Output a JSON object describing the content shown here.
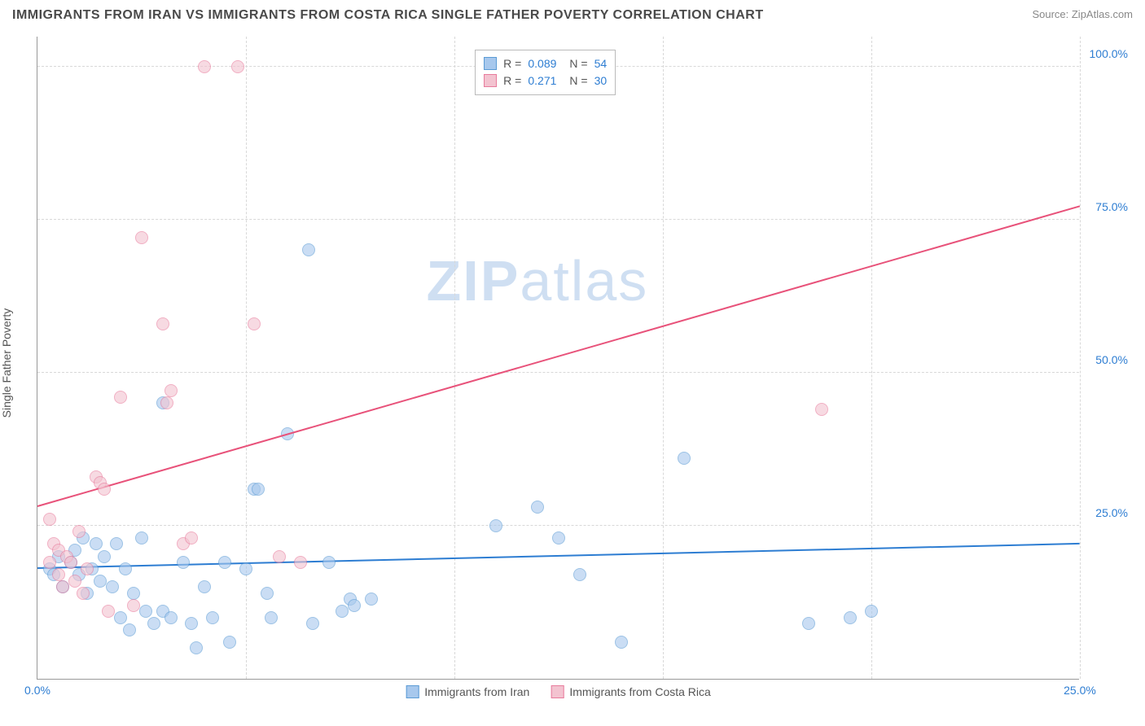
{
  "header": {
    "title": "IMMIGRANTS FROM IRAN VS IMMIGRANTS FROM COSTA RICA SINGLE FATHER POVERTY CORRELATION CHART",
    "source": "Source: ZipAtlas.com"
  },
  "yaxis": {
    "label": "Single Father Poverty"
  },
  "watermark": {
    "zip": "ZIP",
    "atlas": "atlas"
  },
  "chart": {
    "type": "scatter",
    "xlim": [
      0,
      25
    ],
    "ylim": [
      0,
      105
    ],
    "background_color": "#ffffff",
    "grid_color": "#d8d8d8",
    "axis_color": "#999999",
    "tick_color": "#2d7dd2",
    "marker_radius": 8,
    "marker_opacity": 0.35,
    "yticks": [
      {
        "v": 25,
        "label": "25.0%"
      },
      {
        "v": 50,
        "label": "50.0%"
      },
      {
        "v": 75,
        "label": "75.0%"
      },
      {
        "v": 100,
        "label": "100.0%"
      }
    ],
    "xticks": [
      {
        "v": 0,
        "label": "0.0%"
      },
      {
        "v": 5,
        "label": ""
      },
      {
        "v": 10,
        "label": ""
      },
      {
        "v": 15,
        "label": ""
      },
      {
        "v": 20,
        "label": ""
      },
      {
        "v": 25,
        "label": "25.0%"
      }
    ],
    "series": [
      {
        "name": "Immigrants from Iran",
        "fill": "#a7c8ed",
        "stroke": "#5b9bd5",
        "R": "0.089",
        "N": "54",
        "trend": {
          "x1": 0,
          "y1": 18,
          "x2": 25,
          "y2": 22,
          "color": "#2d7dd2",
          "width": 2
        },
        "points": [
          [
            0.3,
            18
          ],
          [
            0.4,
            17
          ],
          [
            0.5,
            20
          ],
          [
            0.6,
            15
          ],
          [
            0.8,
            19
          ],
          [
            0.9,
            21
          ],
          [
            1.0,
            17
          ],
          [
            1.1,
            23
          ],
          [
            1.2,
            14
          ],
          [
            1.3,
            18
          ],
          [
            1.4,
            22
          ],
          [
            1.5,
            16
          ],
          [
            1.6,
            20
          ],
          [
            1.8,
            15
          ],
          [
            1.9,
            22
          ],
          [
            2.0,
            10
          ],
          [
            2.1,
            18
          ],
          [
            2.2,
            8
          ],
          [
            2.3,
            14
          ],
          [
            2.5,
            23
          ],
          [
            2.6,
            11
          ],
          [
            2.8,
            9
          ],
          [
            3.0,
            11
          ],
          [
            3.0,
            45
          ],
          [
            3.2,
            10
          ],
          [
            3.5,
            19
          ],
          [
            3.7,
            9
          ],
          [
            3.8,
            5
          ],
          [
            4.0,
            15
          ],
          [
            4.2,
            10
          ],
          [
            4.5,
            19
          ],
          [
            4.6,
            6
          ],
          [
            5.0,
            18
          ],
          [
            5.2,
            31
          ],
          [
            5.3,
            31
          ],
          [
            5.5,
            14
          ],
          [
            5.6,
            10
          ],
          [
            6.0,
            40
          ],
          [
            6.5,
            70
          ],
          [
            6.6,
            9
          ],
          [
            7.0,
            19
          ],
          [
            7.3,
            11
          ],
          [
            7.5,
            13
          ],
          [
            7.6,
            12
          ],
          [
            8.0,
            13
          ],
          [
            11.0,
            25
          ],
          [
            12.0,
            28
          ],
          [
            12.5,
            23
          ],
          [
            13.0,
            17
          ],
          [
            14.0,
            6
          ],
          [
            15.5,
            36
          ],
          [
            18.5,
            9
          ],
          [
            19.5,
            10
          ],
          [
            20.0,
            11
          ]
        ]
      },
      {
        "name": "Immigrants from Costa Rica",
        "fill": "#f3c3d0",
        "stroke": "#e87b9c",
        "R": "0.271",
        "N": "30",
        "trend": {
          "x1": 0,
          "y1": 28,
          "x2": 25,
          "y2": 77,
          "color": "#e8527a",
          "width": 2
        },
        "points": [
          [
            0.3,
            26
          ],
          [
            0.3,
            19
          ],
          [
            0.4,
            22
          ],
          [
            0.5,
            17
          ],
          [
            0.5,
            21
          ],
          [
            0.6,
            15
          ],
          [
            0.7,
            20
          ],
          [
            0.8,
            19
          ],
          [
            0.9,
            16
          ],
          [
            1.0,
            24
          ],
          [
            1.1,
            14
          ],
          [
            1.2,
            18
          ],
          [
            1.4,
            33
          ],
          [
            1.5,
            32
          ],
          [
            1.6,
            31
          ],
          [
            1.7,
            11
          ],
          [
            2.0,
            46
          ],
          [
            2.3,
            12
          ],
          [
            2.5,
            72
          ],
          [
            3.0,
            58
          ],
          [
            3.1,
            45
          ],
          [
            3.2,
            47
          ],
          [
            3.5,
            22
          ],
          [
            3.7,
            23
          ],
          [
            4.0,
            100
          ],
          [
            4.8,
            100
          ],
          [
            5.2,
            58
          ],
          [
            5.8,
            20
          ],
          [
            6.3,
            19
          ],
          [
            18.8,
            44
          ]
        ]
      }
    ],
    "legend": {
      "stats_box": {
        "left_pct": 42,
        "top_pct": 2
      }
    }
  }
}
